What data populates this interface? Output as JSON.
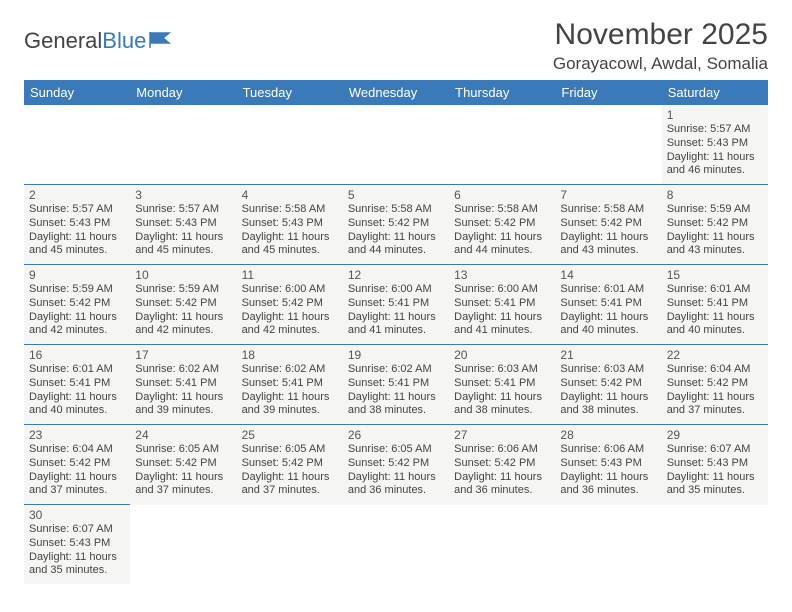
{
  "logo": {
    "text1": "General",
    "text2": "Blue",
    "flag_color": "#3a7ab8"
  },
  "title": "November 2025",
  "location": "Gorayacowl, Awdal, Somalia",
  "colors": {
    "header_bg": "#3a7ab8",
    "header_text": "#ffffff",
    "cell_bg": "#f5f5f3",
    "cell_border": "#3a7ab8",
    "text": "#444444"
  },
  "day_headers": [
    "Sunday",
    "Monday",
    "Tuesday",
    "Wednesday",
    "Thursday",
    "Friday",
    "Saturday"
  ],
  "weeks": [
    [
      null,
      null,
      null,
      null,
      null,
      null,
      {
        "n": "1",
        "sr": "5:57 AM",
        "ss": "5:43 PM",
        "dl": "11 hours and 46 minutes."
      }
    ],
    [
      {
        "n": "2",
        "sr": "5:57 AM",
        "ss": "5:43 PM",
        "dl": "11 hours and 45 minutes."
      },
      {
        "n": "3",
        "sr": "5:57 AM",
        "ss": "5:43 PM",
        "dl": "11 hours and 45 minutes."
      },
      {
        "n": "4",
        "sr": "5:58 AM",
        "ss": "5:43 PM",
        "dl": "11 hours and 45 minutes."
      },
      {
        "n": "5",
        "sr": "5:58 AM",
        "ss": "5:42 PM",
        "dl": "11 hours and 44 minutes."
      },
      {
        "n": "6",
        "sr": "5:58 AM",
        "ss": "5:42 PM",
        "dl": "11 hours and 44 minutes."
      },
      {
        "n": "7",
        "sr": "5:58 AM",
        "ss": "5:42 PM",
        "dl": "11 hours and 43 minutes."
      },
      {
        "n": "8",
        "sr": "5:59 AM",
        "ss": "5:42 PM",
        "dl": "11 hours and 43 minutes."
      }
    ],
    [
      {
        "n": "9",
        "sr": "5:59 AM",
        "ss": "5:42 PM",
        "dl": "11 hours and 42 minutes."
      },
      {
        "n": "10",
        "sr": "5:59 AM",
        "ss": "5:42 PM",
        "dl": "11 hours and 42 minutes."
      },
      {
        "n": "11",
        "sr": "6:00 AM",
        "ss": "5:42 PM",
        "dl": "11 hours and 42 minutes."
      },
      {
        "n": "12",
        "sr": "6:00 AM",
        "ss": "5:41 PM",
        "dl": "11 hours and 41 minutes."
      },
      {
        "n": "13",
        "sr": "6:00 AM",
        "ss": "5:41 PM",
        "dl": "11 hours and 41 minutes."
      },
      {
        "n": "14",
        "sr": "6:01 AM",
        "ss": "5:41 PM",
        "dl": "11 hours and 40 minutes."
      },
      {
        "n": "15",
        "sr": "6:01 AM",
        "ss": "5:41 PM",
        "dl": "11 hours and 40 minutes."
      }
    ],
    [
      {
        "n": "16",
        "sr": "6:01 AM",
        "ss": "5:41 PM",
        "dl": "11 hours and 40 minutes."
      },
      {
        "n": "17",
        "sr": "6:02 AM",
        "ss": "5:41 PM",
        "dl": "11 hours and 39 minutes."
      },
      {
        "n": "18",
        "sr": "6:02 AM",
        "ss": "5:41 PM",
        "dl": "11 hours and 39 minutes."
      },
      {
        "n": "19",
        "sr": "6:02 AM",
        "ss": "5:41 PM",
        "dl": "11 hours and 38 minutes."
      },
      {
        "n": "20",
        "sr": "6:03 AM",
        "ss": "5:41 PM",
        "dl": "11 hours and 38 minutes."
      },
      {
        "n": "21",
        "sr": "6:03 AM",
        "ss": "5:42 PM",
        "dl": "11 hours and 38 minutes."
      },
      {
        "n": "22",
        "sr": "6:04 AM",
        "ss": "5:42 PM",
        "dl": "11 hours and 37 minutes."
      }
    ],
    [
      {
        "n": "23",
        "sr": "6:04 AM",
        "ss": "5:42 PM",
        "dl": "11 hours and 37 minutes."
      },
      {
        "n": "24",
        "sr": "6:05 AM",
        "ss": "5:42 PM",
        "dl": "11 hours and 37 minutes."
      },
      {
        "n": "25",
        "sr": "6:05 AM",
        "ss": "5:42 PM",
        "dl": "11 hours and 37 minutes."
      },
      {
        "n": "26",
        "sr": "6:05 AM",
        "ss": "5:42 PM",
        "dl": "11 hours and 36 minutes."
      },
      {
        "n": "27",
        "sr": "6:06 AM",
        "ss": "5:42 PM",
        "dl": "11 hours and 36 minutes."
      },
      {
        "n": "28",
        "sr": "6:06 AM",
        "ss": "5:43 PM",
        "dl": "11 hours and 36 minutes."
      },
      {
        "n": "29",
        "sr": "6:07 AM",
        "ss": "5:43 PM",
        "dl": "11 hours and 35 minutes."
      }
    ],
    [
      {
        "n": "30",
        "sr": "6:07 AM",
        "ss": "5:43 PM",
        "dl": "11 hours and 35 minutes."
      },
      null,
      null,
      null,
      null,
      null,
      null
    ]
  ],
  "labels": {
    "sunrise": "Sunrise: ",
    "sunset": "Sunset: ",
    "daylight": "Daylight: "
  }
}
